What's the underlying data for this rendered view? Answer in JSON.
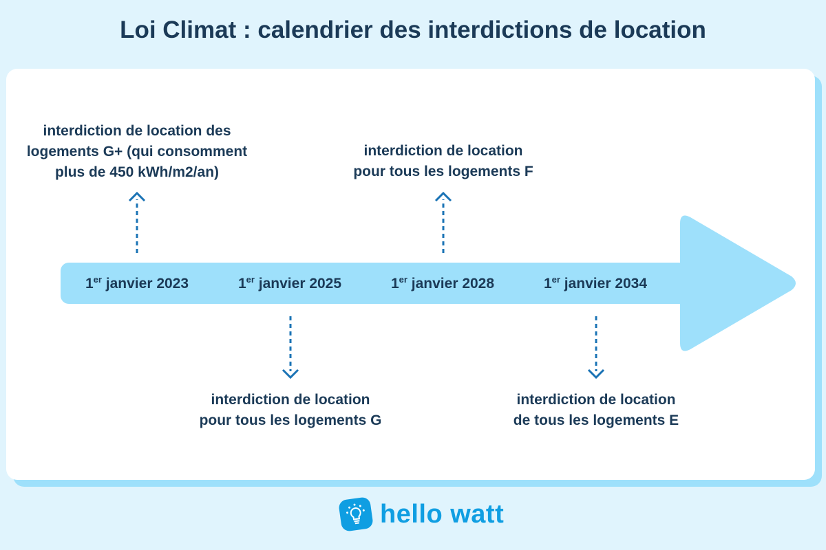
{
  "title": "Loi Climat : calendrier des interdictions de location",
  "timeline": [
    {
      "day": "1",
      "suffix": "er",
      "rest": "janvier 2023",
      "label": [
        "interdiction de location des",
        "logements G+ (qui consomment",
        "plus de 450 kWh/m2/an)"
      ],
      "direction": "up"
    },
    {
      "day": "1",
      "suffix": "er",
      "rest": "janvier 2025",
      "label": [
        "interdiction de location",
        "pour tous les logements G"
      ],
      "direction": "down"
    },
    {
      "day": "1",
      "suffix": "er",
      "rest": "janvier 2028",
      "label": [
        "interdiction de location",
        "pour tous les logements F"
      ],
      "direction": "up"
    },
    {
      "day": "1",
      "suffix": "er",
      "rest": "janvier 2034",
      "label": [
        "interdiction de location",
        "de tous les logements E"
      ],
      "direction": "down"
    }
  ],
  "logo": {
    "text": "hello watt",
    "icon": "lightbulb-icon"
  },
  "colors": {
    "background": "#e0f4fd",
    "arrow": "#9ee0fb",
    "pointer": "#1a73b5",
    "text": "#1b3a57",
    "brand": "#0f9ee2"
  }
}
